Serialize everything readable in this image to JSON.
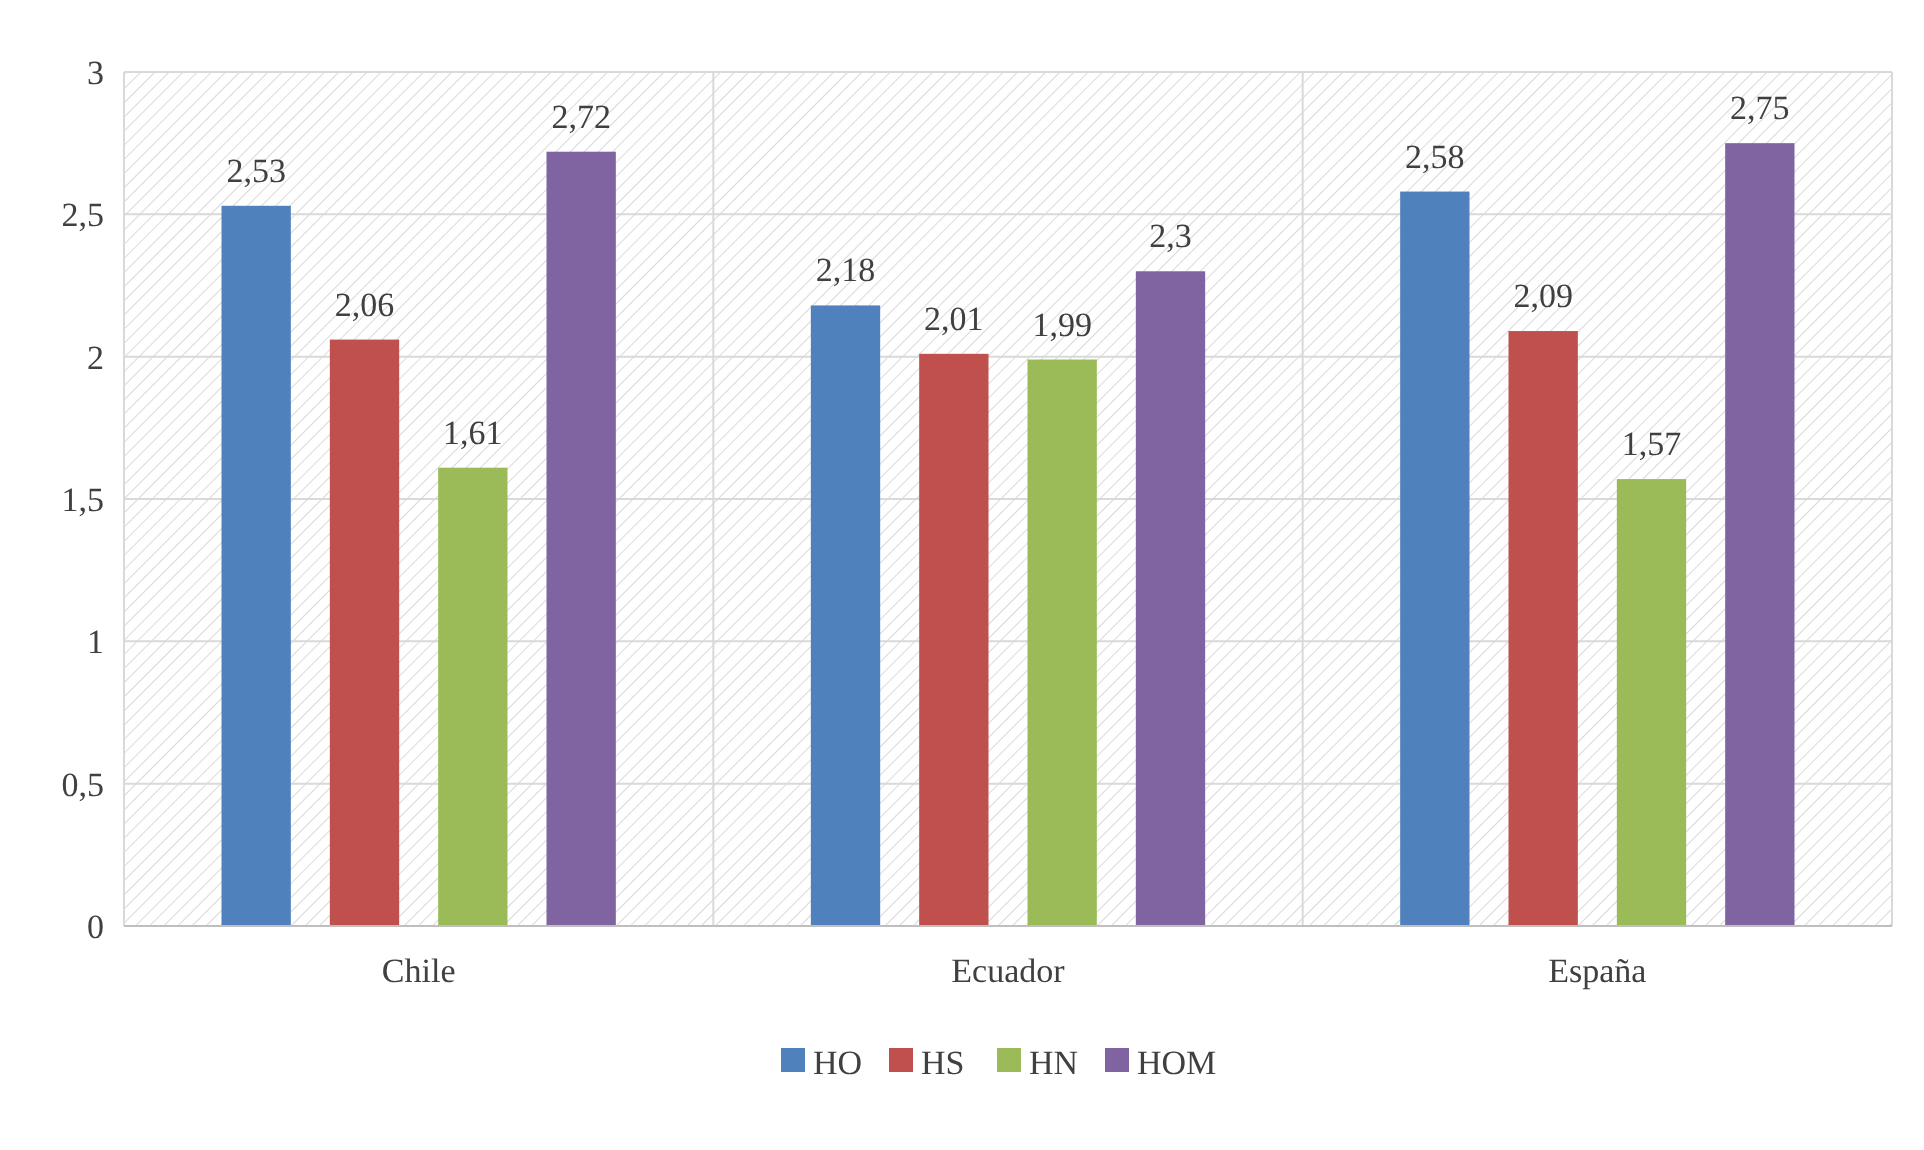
{
  "chart_data": {
    "type": "bar",
    "categories": [
      "Chile",
      "Ecuador",
      "España"
    ],
    "series": [
      {
        "name": "HO",
        "color": "#4f81bd",
        "values": [
          2.53,
          2.18,
          2.58
        ],
        "value_labels": [
          "2,53",
          "2,18",
          "2,58"
        ]
      },
      {
        "name": "HS",
        "color": "#c0504d",
        "values": [
          2.06,
          2.01,
          2.09
        ],
        "value_labels": [
          "2,06",
          "2,01",
          "2,09"
        ]
      },
      {
        "name": "HN",
        "color": "#9bbb59",
        "values": [
          1.61,
          1.99,
          1.57
        ],
        "value_labels": [
          "1,61",
          "1,99",
          "1,57"
        ]
      },
      {
        "name": "HOM",
        "color": "#8064a2",
        "values": [
          2.72,
          2.3,
          2.75
        ],
        "value_labels": [
          "2,72",
          "2,3",
          "2,75"
        ]
      }
    ],
    "ylim": [
      0,
      3
    ],
    "yticks": [
      0,
      {
        "value": 0.5,
        "label": "0,5"
      },
      1,
      {
        "value": 1.5,
        "label": "1,5"
      },
      2,
      {
        "value": 2.5,
        "label": "2,5"
      },
      3
    ],
    "grid": true,
    "legend": "bottom"
  }
}
